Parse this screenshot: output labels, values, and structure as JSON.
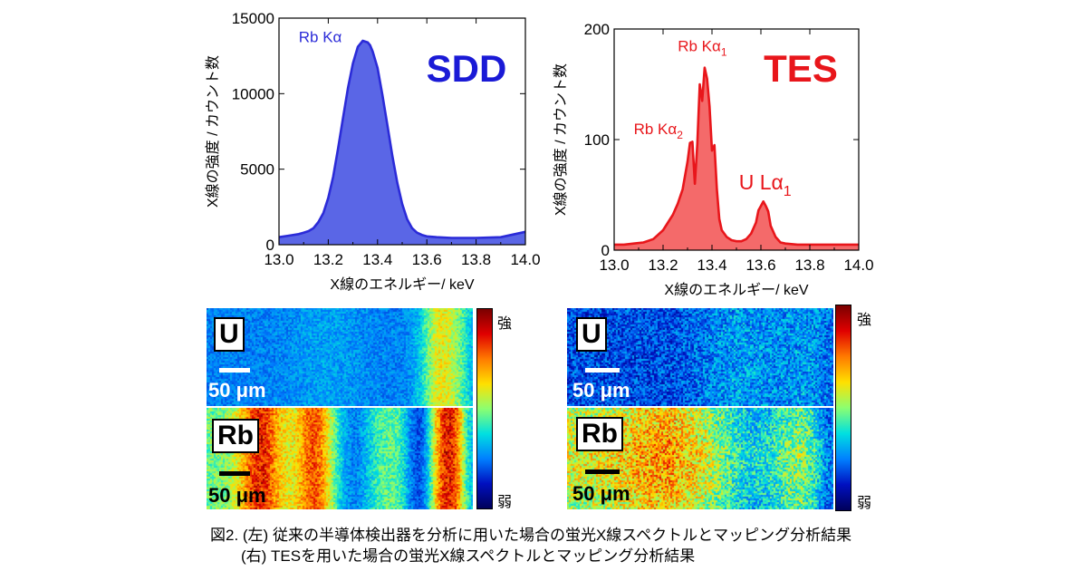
{
  "chart_data": [
    {
      "type": "area",
      "panel": "SDD",
      "title": "SDD",
      "title_color": "#1a1ad6",
      "xlabel": "X線のエネルギー/ keV",
      "ylabel": "X線の強度 / カウント数",
      "xlim": [
        13.0,
        14.0
      ],
      "ylim": [
        0,
        15000
      ],
      "xticks": [
        "13.0",
        "13.2",
        "13.4",
        "13.6",
        "13.8",
        "14.0"
      ],
      "yticks": [
        "0",
        "5000",
        "10000",
        "15000"
      ],
      "line_color": "#2b2bd8",
      "fill_color": "#5a66e6",
      "annotations": [
        {
          "text": "Rb Kα",
          "x": 13.08,
          "y": 13400
        }
      ],
      "series": [
        {
          "x": [
            13.0,
            13.04,
            13.08,
            13.1,
            13.12,
            13.14,
            13.16,
            13.18,
            13.2,
            13.22,
            13.24,
            13.26,
            13.28,
            13.3,
            13.32,
            13.34,
            13.36,
            13.37,
            13.38,
            13.4,
            13.42,
            13.44,
            13.46,
            13.48,
            13.5,
            13.52,
            13.54,
            13.56,
            13.58,
            13.6,
            13.64,
            13.7,
            13.8,
            13.9,
            14.0
          ],
          "values": [
            500,
            600,
            700,
            800,
            900,
            1100,
            1500,
            2100,
            3100,
            4500,
            6400,
            8400,
            10400,
            12000,
            13100,
            13500,
            13400,
            13200,
            12800,
            11700,
            9900,
            7900,
            5900,
            4100,
            2700,
            1700,
            1100,
            800,
            650,
            550,
            500,
            450,
            450,
            500,
            850
          ]
        }
      ]
    },
    {
      "type": "area",
      "panel": "TES",
      "title": "TES",
      "title_color": "#e8161b",
      "xlabel": "X線のエネルギー/ keV",
      "ylabel": "X線の強度 / カウント数",
      "xlim": [
        13.0,
        14.0
      ],
      "ylim": [
        0,
        200
      ],
      "xticks": [
        "13.0",
        "13.2",
        "13.4",
        "13.6",
        "13.8",
        "14.0"
      ],
      "yticks": [
        "0",
        "100",
        "200"
      ],
      "line_color": "#e8161b",
      "fill_color": "#f46a6a",
      "annotations": [
        {
          "text": "Rb Kα",
          "sub": "1",
          "x": 13.26,
          "y": 180,
          "size": 17
        },
        {
          "text": "Rb Kα",
          "sub": "2",
          "x": 13.08,
          "y": 105,
          "size": 17
        },
        {
          "text": "U Lα",
          "sub": "1",
          "x": 13.51,
          "y": 55,
          "size": 23
        }
      ],
      "series": [
        {
          "x": [
            13.0,
            13.04,
            13.08,
            13.12,
            13.16,
            13.2,
            13.22,
            13.24,
            13.26,
            13.28,
            13.3,
            13.31,
            13.32,
            13.33,
            13.34,
            13.35,
            13.36,
            13.37,
            13.38,
            13.39,
            13.4,
            13.41,
            13.42,
            13.43,
            13.44,
            13.46,
            13.48,
            13.5,
            13.52,
            13.54,
            13.56,
            13.58,
            13.59,
            13.6,
            13.61,
            13.62,
            13.63,
            13.64,
            13.66,
            13.68,
            13.7,
            13.75,
            13.8,
            13.85,
            13.9,
            13.95,
            14.0
          ],
          "values": [
            5,
            5,
            6,
            7,
            10,
            18,
            25,
            32,
            42,
            55,
            80,
            97,
            98,
            60,
            96,
            150,
            135,
            165,
            155,
            130,
            90,
            95,
            55,
            28,
            18,
            12,
            9,
            8,
            8,
            10,
            15,
            25,
            36,
            40,
            44,
            40,
            35,
            22,
            12,
            7,
            6,
            5,
            5,
            5,
            5,
            5,
            5
          ]
        }
      ]
    }
  ],
  "maps": {
    "colorbar_high": "強",
    "colorbar_low": "弱",
    "scale_label": "50 μm",
    "left": {
      "U": {
        "element": "U"
      },
      "Rb": {
        "element": "Rb"
      }
    },
    "right": {
      "U": {
        "element": "U"
      },
      "Rb": {
        "element": "Rb"
      }
    }
  },
  "caption": {
    "line1": "図2. (左) 従来の半導体検出器を分析に用いた場合の蛍光X線スペクトルとマッピング分析結果",
    "line2": "(右) TESを用いた場合の蛍光X線スペクトルとマッピング分析結果"
  }
}
